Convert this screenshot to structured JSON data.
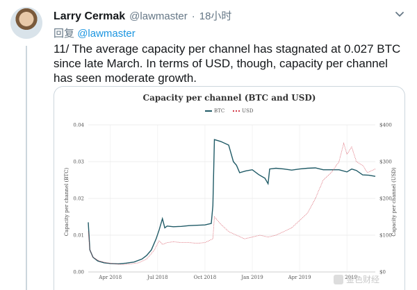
{
  "tweet": {
    "author_name": "Larry Cermak",
    "author_handle": "@lawmaster",
    "separator": "·",
    "time": "18小时",
    "reply_label": "回复",
    "reply_to": "@lawmaster",
    "text": "11/ The average capacity per channel has stagnated at 0.027 BTC since late March. In terms of USD, though, capacity per channel has seen moderate growth."
  },
  "watermark": {
    "text": "金色财经"
  },
  "chart_data": {
    "type": "line",
    "title": "Capacity per channel (BTC and USD)",
    "ylabel_left": "Capacity per channel (BTC)",
    "ylabel_right": "Capacity per channel (USD)",
    "legend": [
      "BTC",
      "USD"
    ],
    "legend_placement": "top-center",
    "colors": {
      "BTC": "#1f5a66",
      "USD": "#d23a4a"
    },
    "x_ticks": [
      "Apr 2018",
      "Jul 2018",
      "Oct 2018",
      "Jan 2019",
      "Apr 2019",
      "Jul 2019"
    ],
    "x_tick_months": [
      1,
      4,
      7,
      10,
      13,
      16
    ],
    "y_left_ticks": [
      "0.00",
      "0.01",
      "0.02",
      "0.03",
      "0.04"
    ],
    "y_left_range": [
      0,
      0.04
    ],
    "y_right_ticks": [
      "$0",
      "$100",
      "$200",
      "$300",
      "$400"
    ],
    "y_right_range": [
      0,
      400
    ],
    "x_range": [
      -0.4,
      17.8
    ],
    "series": [
      {
        "name": "BTC",
        "axis": "left",
        "points": [
          [
            -0.4,
            0.0135
          ],
          [
            -0.3,
            0.006
          ],
          [
            -0.1,
            0.004
          ],
          [
            0.2,
            0.003
          ],
          [
            0.6,
            0.0025
          ],
          [
            1.0,
            0.0023
          ],
          [
            1.5,
            0.0022
          ],
          [
            2.0,
            0.0024
          ],
          [
            2.5,
            0.0027
          ],
          [
            3.0,
            0.0035
          ],
          [
            3.3,
            0.0045
          ],
          [
            3.6,
            0.006
          ],
          [
            3.9,
            0.009
          ],
          [
            4.1,
            0.0115
          ],
          [
            4.3,
            0.0145
          ],
          [
            4.45,
            0.012
          ],
          [
            4.6,
            0.0125
          ],
          [
            5.0,
            0.0123
          ],
          [
            5.5,
            0.0124
          ],
          [
            6.0,
            0.0126
          ],
          [
            6.5,
            0.0127
          ],
          [
            7.0,
            0.0128
          ],
          [
            7.4,
            0.0132
          ],
          [
            7.5,
            0.018
          ],
          [
            7.6,
            0.036
          ],
          [
            8.0,
            0.0355
          ],
          [
            8.5,
            0.0345
          ],
          [
            8.8,
            0.03
          ],
          [
            9.0,
            0.029
          ],
          [
            9.2,
            0.027
          ],
          [
            9.6,
            0.0275
          ],
          [
            10.0,
            0.0278
          ],
          [
            10.4,
            0.0265
          ],
          [
            10.8,
            0.0255
          ],
          [
            11.0,
            0.024
          ],
          [
            11.1,
            0.028
          ],
          [
            11.5,
            0.0282
          ],
          [
            12.0,
            0.028
          ],
          [
            12.5,
            0.0277
          ],
          [
            13.0,
            0.028
          ],
          [
            13.5,
            0.0282
          ],
          [
            14.0,
            0.0283
          ],
          [
            14.5,
            0.0278
          ],
          [
            15.0,
            0.0278
          ],
          [
            15.5,
            0.0278
          ],
          [
            16.0,
            0.0272
          ],
          [
            16.3,
            0.028
          ],
          [
            16.6,
            0.0276
          ],
          [
            17.0,
            0.0264
          ],
          [
            17.4,
            0.0263
          ],
          [
            17.8,
            0.026
          ]
        ]
      },
      {
        "name": "USD",
        "axis": "right",
        "points": [
          [
            -0.4,
            110
          ],
          [
            -0.3,
            60
          ],
          [
            -0.1,
            40
          ],
          [
            0.3,
            30
          ],
          [
            0.8,
            25
          ],
          [
            1.3,
            22
          ],
          [
            1.8,
            20
          ],
          [
            2.3,
            22
          ],
          [
            2.8,
            25
          ],
          [
            3.3,
            35
          ],
          [
            3.8,
            60
          ],
          [
            4.1,
            85
          ],
          [
            4.3,
            75
          ],
          [
            4.6,
            80
          ],
          [
            5.0,
            82
          ],
          [
            5.5,
            80
          ],
          [
            6.0,
            80
          ],
          [
            6.5,
            78
          ],
          [
            7.0,
            80
          ],
          [
            7.5,
            90
          ],
          [
            7.6,
            150
          ],
          [
            8.0,
            130
          ],
          [
            8.5,
            110
          ],
          [
            9.0,
            100
          ],
          [
            9.5,
            90
          ],
          [
            10.0,
            95
          ],
          [
            10.5,
            100
          ],
          [
            11.0,
            95
          ],
          [
            11.5,
            100
          ],
          [
            12.0,
            110
          ],
          [
            12.5,
            120
          ],
          [
            13.0,
            140
          ],
          [
            13.5,
            160
          ],
          [
            14.0,
            200
          ],
          [
            14.5,
            250
          ],
          [
            15.0,
            270
          ],
          [
            15.5,
            300
          ],
          [
            15.8,
            350
          ],
          [
            16.0,
            320
          ],
          [
            16.3,
            340
          ],
          [
            16.6,
            300
          ],
          [
            17.0,
            290
          ],
          [
            17.3,
            270
          ],
          [
            17.8,
            280
          ]
        ]
      }
    ]
  }
}
